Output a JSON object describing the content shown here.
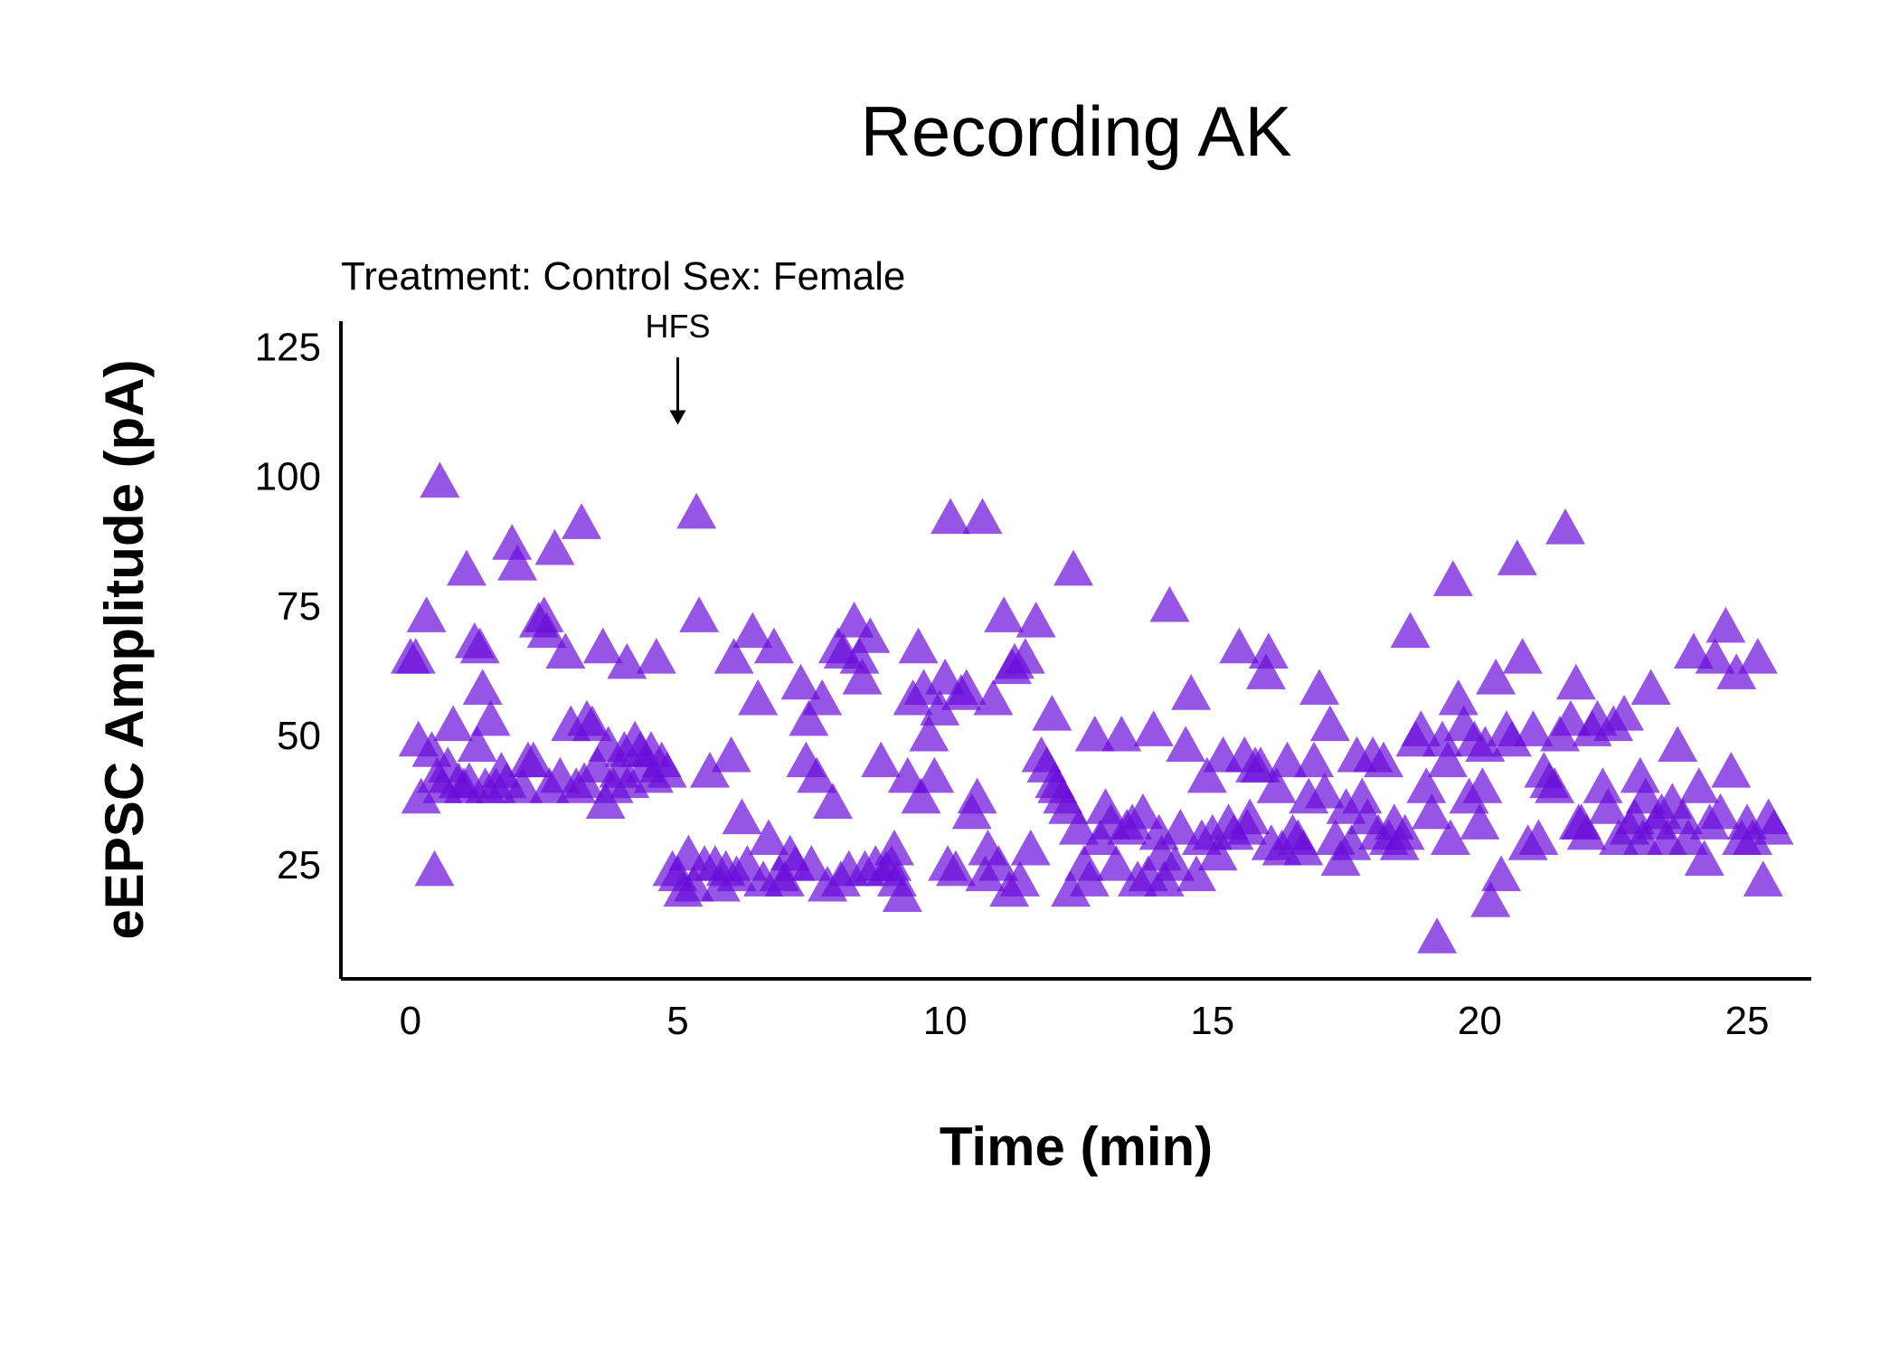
{
  "chart_data": {
    "type": "scatter",
    "title": "Recording AK",
    "subtitle": "Treatment: Control  Sex: Female",
    "xlabel": "Time (min)",
    "ylabel": "eEPSC Amplitude (pA)",
    "xlim": [
      -1.3,
      26.2
    ],
    "ylim": [
      3,
      130
    ],
    "xticks": [
      0,
      5,
      10,
      15,
      20,
      25
    ],
    "yticks": [
      25,
      50,
      75,
      100,
      125
    ],
    "grid": false,
    "marker": "triangle",
    "color": "#6a0dd9",
    "annotation": {
      "label": "HFS",
      "x": 5,
      "arrow_from": 123,
      "arrow_to": 110
    },
    "points": [
      [
        0,
        65
      ],
      [
        0.1,
        65
      ],
      [
        0.15,
        49
      ],
      [
        0.2,
        38
      ],
      [
        0.3,
        73
      ],
      [
        0.4,
        47
      ],
      [
        0.45,
        24
      ],
      [
        0.5,
        42
      ],
      [
        0.55,
        99
      ],
      [
        0.6,
        40
      ],
      [
        0.7,
        44
      ],
      [
        0.8,
        52
      ],
      [
        0.9,
        41
      ],
      [
        1.0,
        40
      ],
      [
        1.05,
        82
      ],
      [
        1.1,
        41
      ],
      [
        1.2,
        68
      ],
      [
        1.25,
        48
      ],
      [
        1.3,
        67
      ],
      [
        1.35,
        59
      ],
      [
        1.4,
        40
      ],
      [
        1.5,
        53
      ],
      [
        1.6,
        40
      ],
      [
        1.7,
        43
      ],
      [
        1.8,
        41
      ],
      [
        1.9,
        87
      ],
      [
        2.0,
        83
      ],
      [
        2.1,
        40
      ],
      [
        2.2,
        45
      ],
      [
        2.3,
        45
      ],
      [
        2.4,
        72
      ],
      [
        2.5,
        73
      ],
      [
        2.55,
        70
      ],
      [
        2.6,
        40
      ],
      [
        2.7,
        86
      ],
      [
        2.8,
        42
      ],
      [
        2.9,
        66
      ],
      [
        3.0,
        52
      ],
      [
        3.1,
        40
      ],
      [
        3.2,
        91
      ],
      [
        3.25,
        41
      ],
      [
        3.3,
        53
      ],
      [
        3.4,
        52
      ],
      [
        3.5,
        44
      ],
      [
        3.6,
        67
      ],
      [
        3.65,
        37
      ],
      [
        3.7,
        48
      ],
      [
        3.8,
        40
      ],
      [
        3.9,
        43
      ],
      [
        4.0,
        47
      ],
      [
        4.05,
        64
      ],
      [
        4.1,
        41
      ],
      [
        4.2,
        49
      ],
      [
        4.3,
        47
      ],
      [
        4.4,
        44
      ],
      [
        4.5,
        47
      ],
      [
        4.55,
        42
      ],
      [
        4.6,
        65
      ],
      [
        4.7,
        45
      ],
      [
        4.8,
        43
      ],
      [
        4.9,
        24
      ],
      [
        5.0,
        23
      ],
      [
        5.1,
        20
      ],
      [
        5.2,
        27
      ],
      [
        5.3,
        21
      ],
      [
        5.35,
        93
      ],
      [
        5.4,
        73
      ],
      [
        5.5,
        25
      ],
      [
        5.6,
        43
      ],
      [
        5.7,
        25
      ],
      [
        5.8,
        21
      ],
      [
        5.9,
        24
      ],
      [
        6.0,
        46
      ],
      [
        6.05,
        65
      ],
      [
        6.1,
        23
      ],
      [
        6.2,
        34
      ],
      [
        6.3,
        25
      ],
      [
        6.4,
        70
      ],
      [
        6.5,
        57
      ],
      [
        6.6,
        22
      ],
      [
        6.7,
        30
      ],
      [
        6.8,
        67
      ],
      [
        6.9,
        23
      ],
      [
        7.0,
        22
      ],
      [
        7.1,
        27
      ],
      [
        7.2,
        25
      ],
      [
        7.3,
        60
      ],
      [
        7.4,
        45
      ],
      [
        7.45,
        53
      ],
      [
        7.5,
        25
      ],
      [
        7.6,
        42
      ],
      [
        7.7,
        57
      ],
      [
        7.8,
        21
      ],
      [
        7.9,
        37
      ],
      [
        8.0,
        67
      ],
      [
        8.05,
        22
      ],
      [
        8.1,
        66
      ],
      [
        8.2,
        24
      ],
      [
        8.3,
        72
      ],
      [
        8.4,
        65
      ],
      [
        8.45,
        61
      ],
      [
        8.5,
        24
      ],
      [
        8.6,
        69
      ],
      [
        8.7,
        25
      ],
      [
        8.8,
        45
      ],
      [
        8.9,
        24
      ],
      [
        9.0,
        25
      ],
      [
        9.05,
        28
      ],
      [
        9.1,
        22
      ],
      [
        9.2,
        19
      ],
      [
        9.3,
        42
      ],
      [
        9.4,
        57
      ],
      [
        9.5,
        67
      ],
      [
        9.55,
        38
      ],
      [
        9.6,
        59
      ],
      [
        9.7,
        50
      ],
      [
        9.8,
        42
      ],
      [
        9.9,
        55
      ],
      [
        10.0,
        61
      ],
      [
        10.05,
        25
      ],
      [
        10.1,
        92
      ],
      [
        10.2,
        24
      ],
      [
        10.3,
        58
      ],
      [
        10.4,
        59
      ],
      [
        10.5,
        35
      ],
      [
        10.6,
        38
      ],
      [
        10.7,
        92
      ],
      [
        10.75,
        23
      ],
      [
        10.8,
        28
      ],
      [
        10.9,
        57
      ],
      [
        11.0,
        25
      ],
      [
        11.1,
        73
      ],
      [
        11.2,
        20
      ],
      [
        11.25,
        63
      ],
      [
        11.3,
        64
      ],
      [
        11.4,
        22
      ],
      [
        11.5,
        65
      ],
      [
        11.6,
        28
      ],
      [
        11.7,
        72
      ],
      [
        11.8,
        46
      ],
      [
        11.9,
        44
      ],
      [
        12.0,
        54
      ],
      [
        12.05,
        41
      ],
      [
        12.1,
        40
      ],
      [
        12.2,
        38
      ],
      [
        12.3,
        36
      ],
      [
        12.35,
        20
      ],
      [
        12.4,
        82
      ],
      [
        12.5,
        32
      ],
      [
        12.6,
        25
      ],
      [
        12.7,
        22
      ],
      [
        12.8,
        50
      ],
      [
        12.9,
        30
      ],
      [
        13.0,
        36
      ],
      [
        13.1,
        33
      ],
      [
        13.2,
        25
      ],
      [
        13.3,
        50
      ],
      [
        13.4,
        32
      ],
      [
        13.5,
        33
      ],
      [
        13.6,
        22
      ],
      [
        13.7,
        35
      ],
      [
        13.8,
        23
      ],
      [
        13.9,
        51
      ],
      [
        14.0,
        31
      ],
      [
        14.05,
        27
      ],
      [
        14.1,
        22
      ],
      [
        14.2,
        75
      ],
      [
        14.3,
        25
      ],
      [
        14.4,
        32
      ],
      [
        14.5,
        48
      ],
      [
        14.6,
        58
      ],
      [
        14.7,
        23
      ],
      [
        14.8,
        30
      ],
      [
        14.9,
        42
      ],
      [
        15.0,
        31
      ],
      [
        15.1,
        27
      ],
      [
        15.2,
        46
      ],
      [
        15.3,
        33
      ],
      [
        15.4,
        31
      ],
      [
        15.5,
        67
      ],
      [
        15.6,
        46
      ],
      [
        15.65,
        32
      ],
      [
        15.7,
        34
      ],
      [
        15.8,
        44
      ],
      [
        15.9,
        44
      ],
      [
        16.0,
        62
      ],
      [
        16.05,
        66
      ],
      [
        16.1,
        29
      ],
      [
        16.2,
        40
      ],
      [
        16.3,
        28
      ],
      [
        16.4,
        45
      ],
      [
        16.5,
        31
      ],
      [
        16.6,
        30
      ],
      [
        16.7,
        28
      ],
      [
        16.8,
        38
      ],
      [
        16.9,
        45
      ],
      [
        17.0,
        59
      ],
      [
        17.1,
        39
      ],
      [
        17.2,
        52
      ],
      [
        17.3,
        30
      ],
      [
        17.4,
        26
      ],
      [
        17.5,
        36
      ],
      [
        17.6,
        29
      ],
      [
        17.7,
        46
      ],
      [
        17.8,
        38
      ],
      [
        17.9,
        34
      ],
      [
        18.0,
        46
      ],
      [
        18.1,
        31
      ],
      [
        18.2,
        45
      ],
      [
        18.3,
        30
      ],
      [
        18.4,
        33
      ],
      [
        18.5,
        29
      ],
      [
        18.6,
        31
      ],
      [
        18.7,
        70
      ],
      [
        18.8,
        49
      ],
      [
        18.9,
        51
      ],
      [
        19.0,
        40
      ],
      [
        19.1,
        35
      ],
      [
        19.2,
        11
      ],
      [
        19.3,
        49
      ],
      [
        19.4,
        45
      ],
      [
        19.45,
        30
      ],
      [
        19.5,
        80
      ],
      [
        19.6,
        57
      ],
      [
        19.7,
        52
      ],
      [
        19.8,
        38
      ],
      [
        19.9,
        49
      ],
      [
        20.0,
        33
      ],
      [
        20.05,
        40
      ],
      [
        20.1,
        48
      ],
      [
        20.2,
        18
      ],
      [
        20.3,
        61
      ],
      [
        20.4,
        23
      ],
      [
        20.5,
        51
      ],
      [
        20.6,
        49
      ],
      [
        20.7,
        84
      ],
      [
        20.8,
        65
      ],
      [
        20.9,
        29
      ],
      [
        21.0,
        51
      ],
      [
        21.1,
        30
      ],
      [
        21.2,
        43
      ],
      [
        21.3,
        41
      ],
      [
        21.4,
        40
      ],
      [
        21.5,
        50
      ],
      [
        21.6,
        90
      ],
      [
        21.7,
        53
      ],
      [
        21.8,
        60
      ],
      [
        21.85,
        33
      ],
      [
        21.9,
        33
      ],
      [
        22.0,
        31
      ],
      [
        22.1,
        51
      ],
      [
        22.2,
        53
      ],
      [
        22.3,
        40
      ],
      [
        22.4,
        36
      ],
      [
        22.5,
        52
      ],
      [
        22.6,
        30
      ],
      [
        22.7,
        54
      ],
      [
        22.8,
        32
      ],
      [
        22.9,
        34
      ],
      [
        23.0,
        42
      ],
      [
        23.05,
        30
      ],
      [
        23.1,
        38
      ],
      [
        23.2,
        59
      ],
      [
        23.3,
        33
      ],
      [
        23.4,
        35
      ],
      [
        23.5,
        30
      ],
      [
        23.6,
        37
      ],
      [
        23.7,
        48
      ],
      [
        23.8,
        34
      ],
      [
        23.9,
        30
      ],
      [
        24.0,
        66
      ],
      [
        24.1,
        40
      ],
      [
        24.2,
        26
      ],
      [
        24.3,
        33
      ],
      [
        24.4,
        65
      ],
      [
        24.5,
        35
      ],
      [
        24.6,
        71
      ],
      [
        24.7,
        43
      ],
      [
        24.8,
        62
      ],
      [
        24.9,
        30
      ],
      [
        25.0,
        33
      ],
      [
        25.1,
        30
      ],
      [
        25.2,
        65
      ],
      [
        25.3,
        22
      ],
      [
        25.4,
        34
      ],
      [
        25.5,
        32
      ]
    ]
  }
}
